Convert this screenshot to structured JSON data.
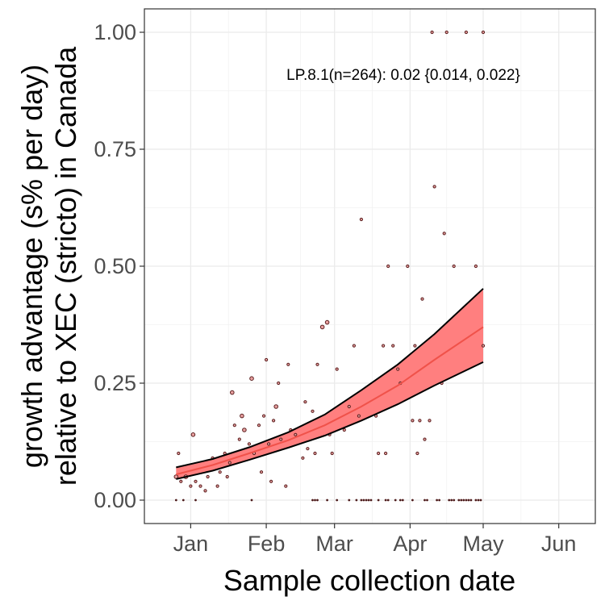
{
  "chart_data": {
    "type": "scatter",
    "title": "",
    "xlabel": "Sample collection date",
    "ylabel_lines": [
      "growth advantage (s% per day)",
      "relative to XEC (stricto) in Canada"
    ],
    "x_axis": {
      "type": "date",
      "range": [
        "2024-12-13",
        "2025-06-16"
      ],
      "ticks": [
        {
          "date": "2025-01-01",
          "label": "Jan"
        },
        {
          "date": "2025-02-01",
          "label": "Feb"
        },
        {
          "date": "2025-03-01",
          "label": "Mar"
        },
        {
          "date": "2025-04-01",
          "label": "Apr"
        },
        {
          "date": "2025-05-01",
          "label": "May"
        },
        {
          "date": "2025-06-01",
          "label": "Jun"
        }
      ]
    },
    "y_axis": {
      "range": [
        -0.05,
        1.05
      ],
      "ticks": [
        {
          "value": 0,
          "label": "0.00"
        },
        {
          "value": 0.25,
          "label": "0.25"
        },
        {
          "value": 0.5,
          "label": "0.50"
        },
        {
          "value": 0.75,
          "label": "0.75"
        },
        {
          "value": 1,
          "label": "1.00"
        }
      ]
    },
    "grid": true,
    "legend": "none",
    "annotation": "LP.8.1(n=264): 0.02 {0.014, 0.022}",
    "colors": {
      "ribbon": "#ff7f7f",
      "fit_line": "#f8766d",
      "band_edge": "#000000",
      "point_stroke": "#5a1e1e",
      "point_fill": "#e8a0a0"
    },
    "fit": {
      "x": [
        "2024-12-26",
        "2025-01-10",
        "2025-01-25",
        "2025-02-10",
        "2025-02-25",
        "2025-03-12",
        "2025-03-27",
        "2025-04-11",
        "2025-05-01"
      ],
      "estimate": [
        0.055,
        0.075,
        0.1,
        0.128,
        0.16,
        0.2,
        0.245,
        0.3,
        0.37
      ],
      "lower": [
        0.045,
        0.063,
        0.086,
        0.112,
        0.138,
        0.17,
        0.205,
        0.245,
        0.295
      ],
      "upper": [
        0.07,
        0.088,
        0.113,
        0.145,
        0.183,
        0.235,
        0.29,
        0.355,
        0.452
      ]
    },
    "points": [
      {
        "x": "2024-12-26",
        "y": 0.05,
        "n": 2
      },
      {
        "x": "2024-12-27",
        "y": 0.1,
        "n": 1
      },
      {
        "x": "2024-12-28",
        "y": 0.04,
        "n": 1
      },
      {
        "x": "2024-12-30",
        "y": 0.05,
        "n": 2
      },
      {
        "x": "2025-01-01",
        "y": 0.03,
        "n": 1
      },
      {
        "x": "2025-01-02",
        "y": 0.14,
        "n": 2
      },
      {
        "x": "2025-01-03",
        "y": 0.04,
        "n": 1
      },
      {
        "x": "2025-01-05",
        "y": 0.03,
        "n": 1
      },
      {
        "x": "2025-01-07",
        "y": 0.02,
        "n": 1
      },
      {
        "x": "2025-01-08",
        "y": 0.05,
        "n": 1
      },
      {
        "x": "2025-01-10",
        "y": 0.09,
        "n": 1
      },
      {
        "x": "2025-01-12",
        "y": 0.03,
        "n": 1
      },
      {
        "x": "2025-01-13",
        "y": 0.06,
        "n": 1
      },
      {
        "x": "2025-01-15",
        "y": 0.1,
        "n": 1
      },
      {
        "x": "2025-01-16",
        "y": 0.05,
        "n": 1
      },
      {
        "x": "2025-01-17",
        "y": 0.08,
        "n": 1
      },
      {
        "x": "2025-01-18",
        "y": 0.23,
        "n": 2
      },
      {
        "x": "2025-01-19",
        "y": 0.16,
        "n": 1
      },
      {
        "x": "2025-01-21",
        "y": 0.13,
        "n": 1
      },
      {
        "x": "2025-01-22",
        "y": 0.18,
        "n": 2
      },
      {
        "x": "2025-01-23",
        "y": 0.15,
        "n": 2
      },
      {
        "x": "2025-01-25",
        "y": 0.12,
        "n": 1
      },
      {
        "x": "2025-01-26",
        "y": 0.26,
        "n": 2
      },
      {
        "x": "2025-01-27",
        "y": 0.1,
        "n": 1
      },
      {
        "x": "2025-01-29",
        "y": 0.16,
        "n": 1
      },
      {
        "x": "2025-01-30",
        "y": 0.06,
        "n": 1
      },
      {
        "x": "2025-01-31",
        "y": 0.18,
        "n": 1
      },
      {
        "x": "2025-02-01",
        "y": 0.3,
        "n": 1
      },
      {
        "x": "2025-02-02",
        "y": 0.12,
        "n": 1
      },
      {
        "x": "2025-02-03",
        "y": 0.04,
        "n": 1
      },
      {
        "x": "2025-02-04",
        "y": 0.17,
        "n": 1
      },
      {
        "x": "2025-02-05",
        "y": 0.2,
        "n": 2
      },
      {
        "x": "2025-02-06",
        "y": 0.25,
        "n": 1
      },
      {
        "x": "2025-02-07",
        "y": 0.13,
        "n": 1
      },
      {
        "x": "2025-02-09",
        "y": 0.03,
        "n": 1
      },
      {
        "x": "2025-02-10",
        "y": 0.29,
        "n": 1
      },
      {
        "x": "2025-02-11",
        "y": 0.15,
        "n": 1
      },
      {
        "x": "2025-02-13",
        "y": 0.14,
        "n": 1
      },
      {
        "x": "2025-02-16",
        "y": 0.09,
        "n": 1
      },
      {
        "x": "2025-02-17",
        "y": 0.21,
        "n": 1
      },
      {
        "x": "2025-02-18",
        "y": 0.11,
        "n": 1
      },
      {
        "x": "2025-02-20",
        "y": 0.19,
        "n": 1
      },
      {
        "x": "2025-02-21",
        "y": 0.1,
        "n": 1
      },
      {
        "x": "2025-02-22",
        "y": 0.29,
        "n": 1
      },
      {
        "x": "2025-02-24",
        "y": 0.37,
        "n": 2
      },
      {
        "x": "2025-02-26",
        "y": 0.38,
        "n": 2
      },
      {
        "x": "2025-02-27",
        "y": 0.14,
        "n": 1
      },
      {
        "x": "2025-02-28",
        "y": 0.1,
        "n": 1
      },
      {
        "x": "2025-03-02",
        "y": 0.28,
        "n": 1
      },
      {
        "x": "2025-03-05",
        "y": 0.15,
        "n": 1
      },
      {
        "x": "2025-03-07",
        "y": 0.2,
        "n": 1
      },
      {
        "x": "2025-03-09",
        "y": 0.33,
        "n": 1
      },
      {
        "x": "2025-03-11",
        "y": 0.18,
        "n": 1
      },
      {
        "x": "2025-03-12",
        "y": 0.6,
        "n": 1
      },
      {
        "x": "2025-03-18",
        "y": 0.18,
        "n": 1
      },
      {
        "x": "2025-03-19",
        "y": 0.1,
        "n": 1
      },
      {
        "x": "2025-03-21",
        "y": 0.33,
        "n": 1
      },
      {
        "x": "2025-03-22",
        "y": 0.1,
        "n": 1
      },
      {
        "x": "2025-03-23",
        "y": 0.5,
        "n": 1
      },
      {
        "x": "2025-03-25",
        "y": 0.33,
        "n": 1
      },
      {
        "x": "2025-03-27",
        "y": 0.28,
        "n": 1
      },
      {
        "x": "2025-03-28",
        "y": 0.25,
        "n": 1
      },
      {
        "x": "2025-03-31",
        "y": 0.5,
        "n": 1
      },
      {
        "x": "2025-04-02",
        "y": 0.17,
        "n": 1
      },
      {
        "x": "2025-04-03",
        "y": 0.33,
        "n": 1
      },
      {
        "x": "2025-04-04",
        "y": 0.1,
        "n": 1
      },
      {
        "x": "2025-04-05",
        "y": 0.17,
        "n": 1
      },
      {
        "x": "2025-04-06",
        "y": 0.43,
        "n": 1
      },
      {
        "x": "2025-04-07",
        "y": 0.13,
        "n": 1
      },
      {
        "x": "2025-04-09",
        "y": 0.17,
        "n": 1
      },
      {
        "x": "2025-04-10",
        "y": 1.0,
        "n": 1
      },
      {
        "x": "2025-04-11",
        "y": 0.67,
        "n": 1
      },
      {
        "x": "2025-04-14",
        "y": 0.25,
        "n": 1
      },
      {
        "x": "2025-04-15",
        "y": 0.57,
        "n": 1
      },
      {
        "x": "2025-04-16",
        "y": 1.0,
        "n": 1
      },
      {
        "x": "2025-04-19",
        "y": 0.5,
        "n": 1
      },
      {
        "x": "2025-04-24",
        "y": 1.0,
        "n": 1
      },
      {
        "x": "2025-04-28",
        "y": 0.5,
        "n": 1
      },
      {
        "x": "2025-05-01",
        "y": 1.0,
        "n": 1
      },
      {
        "x": "2025-05-01",
        "y": 0.33,
        "n": 1
      },
      {
        "x": "2024-12-26",
        "y": 0,
        "n": 1
      },
      {
        "x": "2024-12-29",
        "y": 0,
        "n": 1
      },
      {
        "x": "2025-01-03",
        "y": 0,
        "n": 1
      },
      {
        "x": "2025-01-26",
        "y": 0,
        "n": 1
      },
      {
        "x": "2025-02-20",
        "y": 0,
        "n": 1
      },
      {
        "x": "2025-02-21",
        "y": 0,
        "n": 1
      },
      {
        "x": "2025-02-22",
        "y": 0,
        "n": 1
      },
      {
        "x": "2025-02-26",
        "y": 0,
        "n": 1
      },
      {
        "x": "2025-03-02",
        "y": 0,
        "n": 1
      },
      {
        "x": "2025-03-07",
        "y": 0,
        "n": 1
      },
      {
        "x": "2025-03-10",
        "y": 0,
        "n": 1
      },
      {
        "x": "2025-03-12",
        "y": 0,
        "n": 1
      },
      {
        "x": "2025-03-13",
        "y": 0,
        "n": 1
      },
      {
        "x": "2025-03-14",
        "y": 0,
        "n": 1
      },
      {
        "x": "2025-03-15",
        "y": 0,
        "n": 1
      },
      {
        "x": "2025-03-16",
        "y": 0,
        "n": 1
      },
      {
        "x": "2025-03-19",
        "y": 0,
        "n": 1
      },
      {
        "x": "2025-03-22",
        "y": 0,
        "n": 1
      },
      {
        "x": "2025-03-23",
        "y": 0,
        "n": 1
      },
      {
        "x": "2025-03-26",
        "y": 0,
        "n": 1
      },
      {
        "x": "2025-03-28",
        "y": 0,
        "n": 1
      },
      {
        "x": "2025-03-29",
        "y": 0,
        "n": 1
      },
      {
        "x": "2025-04-02",
        "y": 0,
        "n": 1
      },
      {
        "x": "2025-04-07",
        "y": 0,
        "n": 1
      },
      {
        "x": "2025-04-08",
        "y": 0,
        "n": 1
      },
      {
        "x": "2025-04-12",
        "y": 0,
        "n": 1
      },
      {
        "x": "2025-04-13",
        "y": 0,
        "n": 1
      },
      {
        "x": "2025-04-17",
        "y": 0,
        "n": 1
      },
      {
        "x": "2025-04-18",
        "y": 0,
        "n": 1
      },
      {
        "x": "2025-04-19",
        "y": 0,
        "n": 1
      },
      {
        "x": "2025-04-21",
        "y": 0,
        "n": 1
      },
      {
        "x": "2025-04-22",
        "y": 0,
        "n": 1
      },
      {
        "x": "2025-04-23",
        "y": 0,
        "n": 1
      },
      {
        "x": "2025-04-24",
        "y": 0,
        "n": 1
      },
      {
        "x": "2025-04-25",
        "y": 0,
        "n": 1
      },
      {
        "x": "2025-04-26",
        "y": 0,
        "n": 1
      },
      {
        "x": "2025-04-28",
        "y": 0,
        "n": 1
      },
      {
        "x": "2025-04-29",
        "y": 0,
        "n": 1
      },
      {
        "x": "2025-04-30",
        "y": 0,
        "n": 1
      }
    ]
  }
}
